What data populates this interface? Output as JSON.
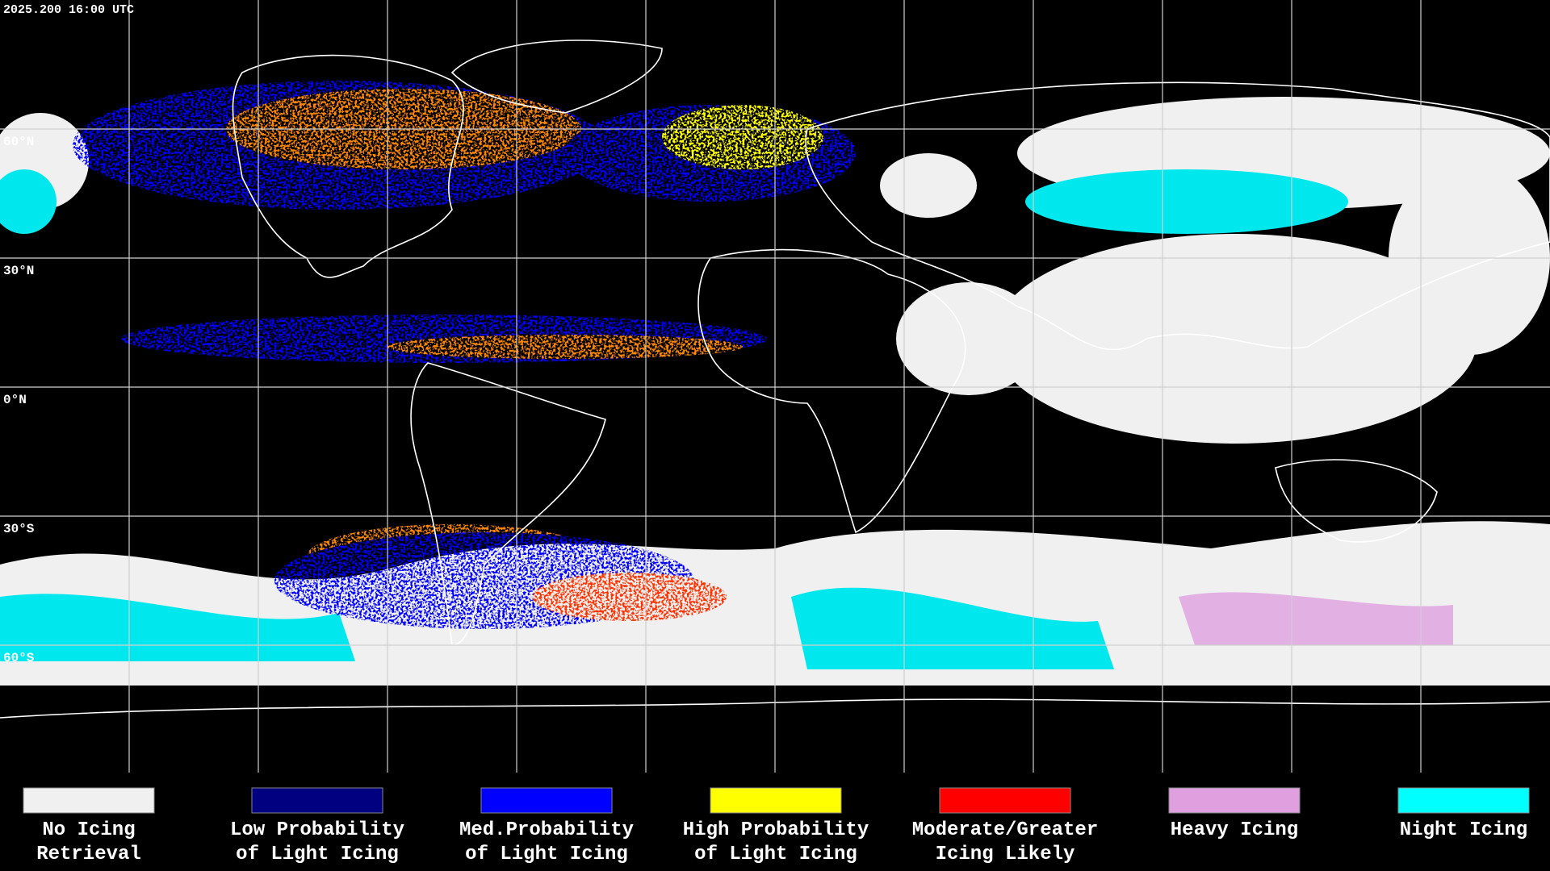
{
  "header": {
    "timestamp": "2025.200 16:00 UTC"
  },
  "map": {
    "latitude_labels": [
      "60°N",
      "30°N",
      "0°N",
      "30°S",
      "60°S"
    ]
  },
  "legend": {
    "items": [
      {
        "color": "#f0f0f0",
        "lines": [
          "No Icing",
          "Retrieval"
        ]
      },
      {
        "color": "#000080",
        "lines": [
          "Low Probability",
          "of Light Icing"
        ]
      },
      {
        "color": "#0000ff",
        "lines": [
          "Med.Probability",
          "of Light Icing"
        ]
      },
      {
        "color": "#ffff00",
        "lines": [
          "High Probability",
          "of Light Icing"
        ]
      },
      {
        "color": "#ff0000",
        "lines": [
          "Moderate/Greater",
          "Icing Likely"
        ]
      },
      {
        "color": "#e0a0e0",
        "lines": [
          "Heavy Icing"
        ]
      },
      {
        "color": "#00ffff",
        "lines": [
          "Night Icing"
        ]
      }
    ]
  }
}
